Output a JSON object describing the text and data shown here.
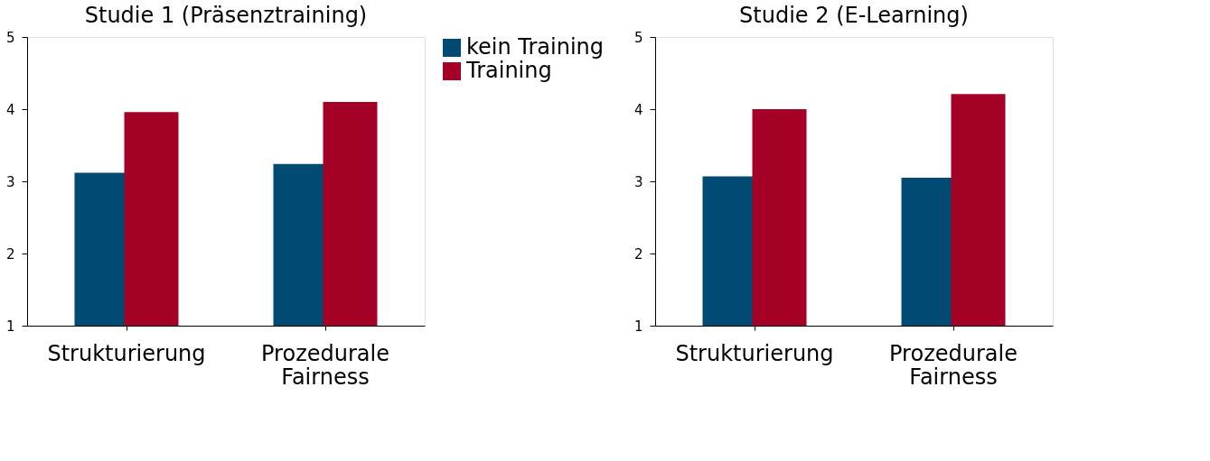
{
  "chart_data": [
    {
      "type": "bar",
      "title": "Studie 1 (Präsenztraining)",
      "categories": [
        "Strukturierung",
        "Prozedurale Fairness"
      ],
      "series": [
        {
          "name": "kein Training",
          "color": "#004a74",
          "values": [
            3.12,
            3.24
          ]
        },
        {
          "name": "Training",
          "color": "#a50026",
          "values": [
            3.96,
            4.1
          ]
        }
      ],
      "ylim": [
        1,
        5
      ],
      "yticks": [
        1,
        2,
        3,
        4,
        5
      ],
      "grid": false,
      "legend": "right"
    },
    {
      "type": "bar",
      "title": "Studie 2 (E-Learning)",
      "categories": [
        "Strukturierung",
        "Prozedurale Fairness"
      ],
      "series": [
        {
          "color": "#004a74",
          "values": [
            3.07,
            3.05
          ]
        },
        {
          "color": "#a50026",
          "values": [
            4.0,
            4.21
          ]
        }
      ],
      "ylim": [
        1,
        5
      ],
      "yticks": [
        1,
        2,
        3,
        4,
        5
      ],
      "grid": false
    }
  ]
}
